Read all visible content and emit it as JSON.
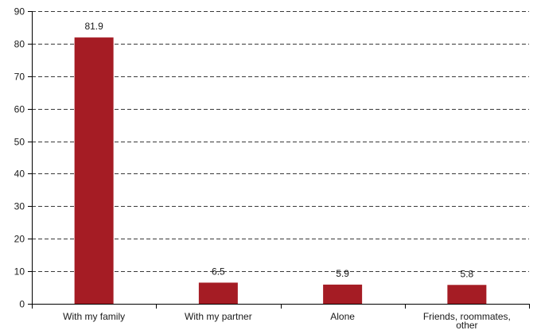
{
  "chart_data": {
    "type": "bar",
    "title": "",
    "xlabel": "",
    "ylabel": "",
    "categories": [
      "With my family",
      "With my partner",
      "Alone",
      [
        "Friends, roommates,",
        "other"
      ]
    ],
    "values": [
      81.9,
      6.5,
      5.9,
      5.8
    ],
    "data_labels": [
      "81.9",
      "6.5",
      "5.9",
      "5.8"
    ],
    "ylim": [
      0,
      90
    ],
    "yticks": [
      0,
      10,
      20,
      30,
      40,
      50,
      60,
      70,
      80,
      90
    ],
    "grid": true,
    "legend": "none",
    "bar_color": "#a51c24"
  }
}
